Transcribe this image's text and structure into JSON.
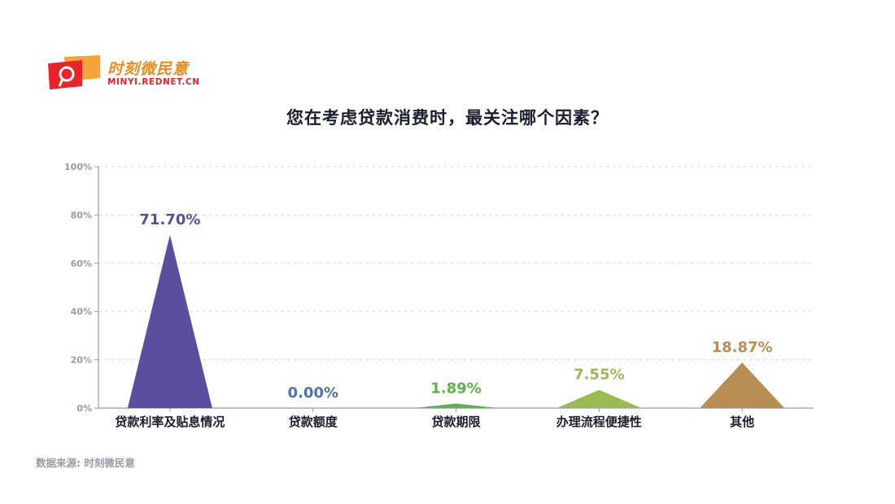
{
  "logo": {
    "name": "时刻微民意",
    "url": "MINYI.REDNET.CN"
  },
  "title": "您在考虑贷款消费时，最关注哪个因素？",
  "source": "数据来源: 时刻微民意",
  "colors": {
    "axis": "#9a9aa6",
    "grid": "#d9d9de",
    "text": "#1b1c2e"
  },
  "chart_data": {
    "type": "bar",
    "title": "您在考虑贷款消费时，最关注哪个因素？",
    "xlabel": "",
    "ylabel": "",
    "ylim": [
      0,
      100
    ],
    "yticks": [
      "0%",
      "20%",
      "40%",
      "60%",
      "80%",
      "100%"
    ],
    "ytick_values": [
      0,
      20,
      40,
      60,
      80,
      100
    ],
    "grid": true,
    "categories": [
      "贷款利率及贴息情况",
      "贷款额度",
      "贷款期限",
      "办理流程便捷性",
      "其他"
    ],
    "values": [
      71.7,
      0.0,
      1.89,
      7.55,
      18.87
    ],
    "value_labels": [
      "71.70%",
      "0.00%",
      "1.89%",
      "7.55%",
      "18.87%"
    ],
    "colors": [
      "#5a4f9e",
      "#4a75b0",
      "#58b548",
      "#9aba52",
      "#b88e52"
    ]
  }
}
